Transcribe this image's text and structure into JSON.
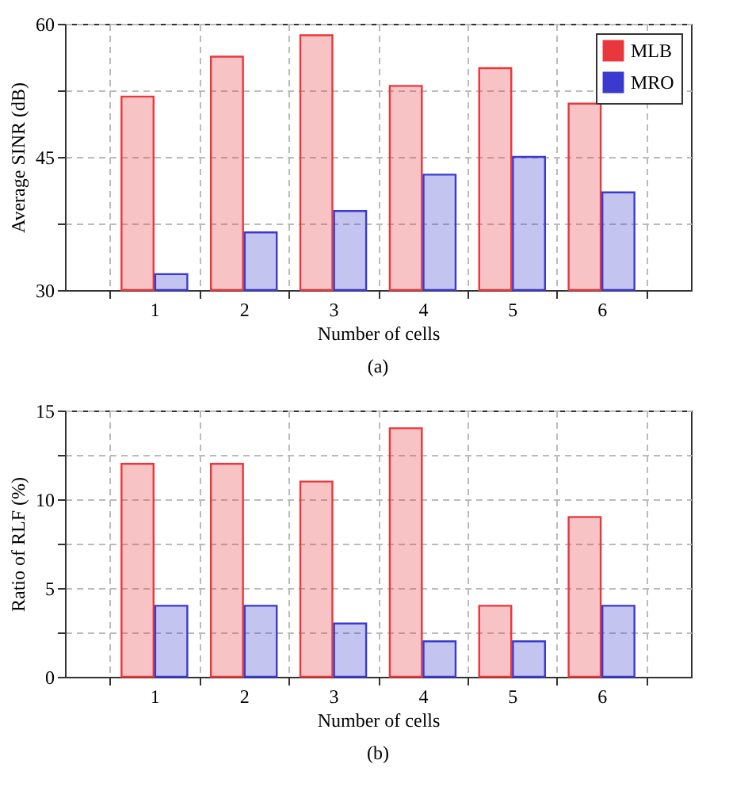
{
  "chart_data": [
    {
      "type": "bar",
      "xlabel": "Number of cells",
      "ylabel": "Average SINR (dB)",
      "annotations": [
        "(a)"
      ],
      "categories": [
        "1",
        "2",
        "3",
        "4",
        "5",
        "6"
      ],
      "series": [
        {
          "name": "MLB",
          "color": "#e8383d",
          "values": [
            51.8,
            56.3,
            58.7,
            53,
            55,
            51
          ]
        },
        {
          "name": "MRO",
          "color": "#3a3acf",
          "values": [
            31.8,
            36.5,
            38.9,
            43,
            45,
            41
          ]
        }
      ],
      "ylim": [
        30,
        60
      ],
      "yticks": [
        30,
        {
          "value": 37.5,
          "label": null
        },
        45,
        {
          "value": 52.5,
          "label": null
        },
        60
      ],
      "grid": true,
      "legend": "top right"
    },
    {
      "type": "bar",
      "xlabel": "Number of cells",
      "ylabel": "Ratio of RLF (%)",
      "annotations": [
        "(b)"
      ],
      "categories": [
        "1",
        "2",
        "3",
        "4",
        "5",
        "6"
      ],
      "series": [
        {
          "name": "MLB",
          "color": "#e8383d",
          "values": [
            12,
            12,
            11,
            14,
            4,
            9
          ]
        },
        {
          "name": "MRO",
          "color": "#3a3acf",
          "values": [
            4,
            4,
            3,
            2,
            2,
            4
          ]
        }
      ],
      "ylim": [
        0,
        15
      ],
      "yticks": [
        0,
        {
          "value": 2.5,
          "label": null
        },
        5,
        {
          "value": 7.5,
          "label": null
        },
        10,
        {
          "value": 12.5,
          "label": null
        },
        15
      ],
      "grid": true,
      "legend": "top right"
    }
  ]
}
